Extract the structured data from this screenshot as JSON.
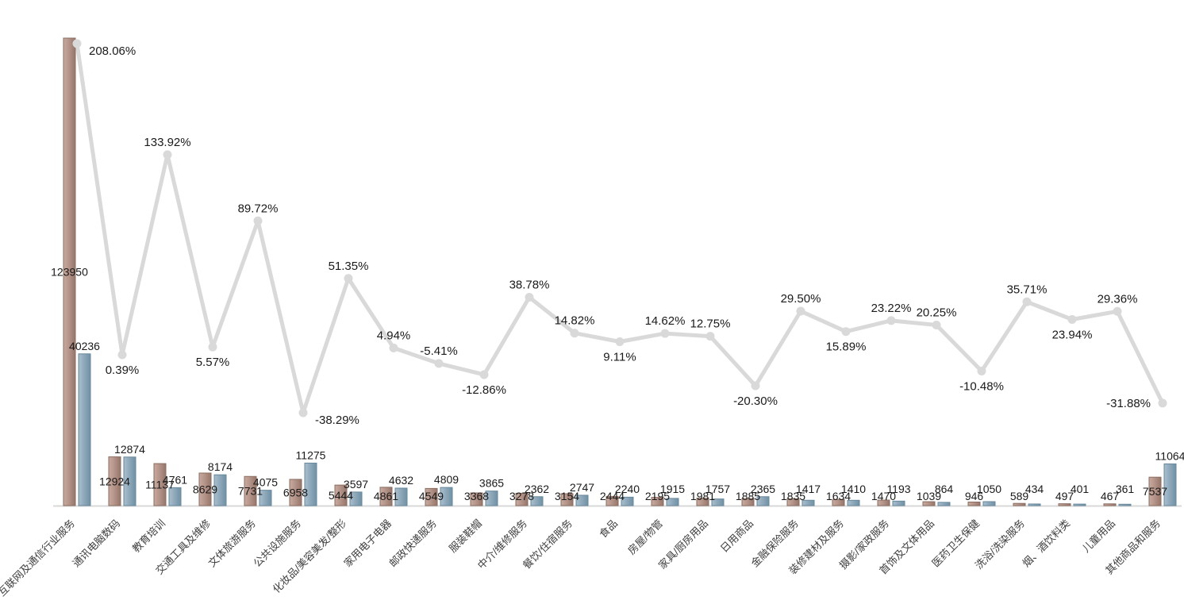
{
  "chart_data": {
    "type": "combo-bar-line",
    "title": "",
    "legend": "none",
    "gridlines": false,
    "background": "#ffffff",
    "categories": [
      "互联网及通信行业服务",
      "通讯电脑数码",
      "教育培训",
      "交通工具及维修",
      "文体旅游服务",
      "公共设施服务",
      "化妆品/美容美发/整形",
      "家用电子电器",
      "邮政快递服务",
      "服装鞋帽",
      "中介/维修服务",
      "餐饮/住宿服务",
      "食品",
      "房屋/物管",
      "家具/厨房用品",
      "日用商品",
      "金融保险服务",
      "装修建材及服务",
      "摄影/家政服务",
      "首饰及文体用品",
      "医药卫生保健",
      "洗浴/洗染服务",
      "烟、酒饮料类",
      "儿童用品",
      "其他商品和服务"
    ],
    "series": [
      {
        "name": "bar-series-1",
        "type": "bar",
        "color_light": "#c9aba0",
        "color_mid": "#b5948a",
        "color_dark": "#96766b",
        "border": "#8a6d60",
        "values": [
          123950,
          12924,
          11137,
          8629,
          7731,
          6958,
          5444,
          4861,
          4549,
          3368,
          3278,
          3154,
          2444,
          2195,
          1981,
          1885,
          1835,
          1634,
          1470,
          1039,
          946,
          589,
          497,
          467,
          7537
        ]
      },
      {
        "name": "bar-series-2",
        "type": "bar",
        "color_light": "#aabfcd",
        "color_mid": "#8fa9bb",
        "color_dark": "#7191a5",
        "border": "#68889c",
        "values": [
          40236,
          12874,
          4761,
          8174,
          4075,
          11275,
          3597,
          4632,
          4809,
          3865,
          2362,
          2747,
          2240,
          1915,
          1757,
          2365,
          1417,
          1410,
          1193,
          864,
          1050,
          434,
          401,
          361,
          11064
        ]
      },
      {
        "name": "line-series-percent",
        "type": "line",
        "color": "#d9d9d9",
        "marker_color": "#d9d9d9",
        "values": [
          208.06,
          0.39,
          133.92,
          5.57,
          89.72,
          -38.29,
          51.35,
          4.94,
          -5.41,
          -12.86,
          38.78,
          14.82,
          9.11,
          14.62,
          12.75,
          -20.3,
          29.5,
          15.89,
          23.22,
          20.25,
          -10.48,
          35.71,
          23.94,
          29.36,
          -31.88
        ],
        "label_suffix": "%",
        "label_sides": [
          "right",
          "below",
          "above",
          "below",
          "above",
          "right",
          "above",
          "above",
          "above",
          "below",
          "above",
          "above",
          "below",
          "above",
          "above",
          "below",
          "above",
          "below",
          "above",
          "above",
          "below",
          "above",
          "below",
          "above",
          "left"
        ]
      }
    ],
    "axes": {
      "x_type": "category",
      "bar_value_max": 123950,
      "line_value_min_shown": -38.29,
      "line_value_max_shown": 208.06
    },
    "value_label_color": "#1a1a1a",
    "category_label_color": "#3f3f3f",
    "axis_line_color": "#d8d8d8"
  }
}
